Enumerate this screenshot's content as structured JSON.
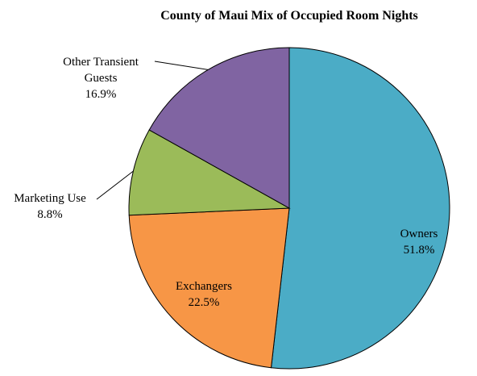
{
  "chart_data": {
    "type": "pie",
    "title": "County of Maui Mix of Occupied Room Nights",
    "categories": [
      "Owners",
      "Exchangers",
      "Marketing Use",
      "Other Transient Guests"
    ],
    "values": [
      51.8,
      22.5,
      8.8,
      16.9
    ],
    "value_labels": [
      "51.8%",
      "22.5%",
      "8.8%",
      "16.9%"
    ],
    "colors": [
      "#4bacc6",
      "#f79646",
      "#9bbb59",
      "#8064a2"
    ]
  }
}
